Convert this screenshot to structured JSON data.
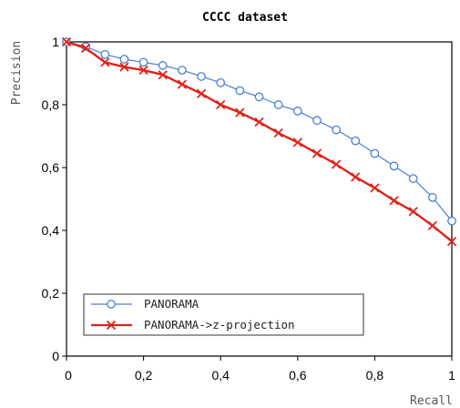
{
  "chart_data": {
    "type": "line",
    "title": "CCCC dataset",
    "xlabel": "Recall",
    "ylabel": "Precision",
    "xlim": [
      0,
      1
    ],
    "ylim": [
      0,
      1
    ],
    "xticks": [
      0,
      0.2,
      0.4,
      0.6,
      0.8,
      1
    ],
    "xtick_labels": [
      "0",
      "0,2",
      "0,4",
      "0,6",
      "0,8",
      "1"
    ],
    "yticks": [
      0,
      0.2,
      0.4,
      0.6,
      0.8,
      1
    ],
    "ytick_labels": [
      "0",
      "0,2",
      "0,4",
      "0,6",
      "0,8",
      "1"
    ],
    "grid": false,
    "legend_position": "bottom-left",
    "series": [
      {
        "name": "PANORAMA",
        "color": "#4a7fd6",
        "marker": "circle",
        "x": [
          0,
          0.05,
          0.1,
          0.15,
          0.2,
          0.25,
          0.3,
          0.35,
          0.4,
          0.45,
          0.5,
          0.55,
          0.6,
          0.65,
          0.7,
          0.75,
          0.8,
          0.85,
          0.9,
          0.95,
          1
        ],
        "y": [
          1.0,
          0.985,
          0.96,
          0.945,
          0.935,
          0.925,
          0.91,
          0.89,
          0.87,
          0.845,
          0.825,
          0.8,
          0.78,
          0.75,
          0.72,
          0.685,
          0.645,
          0.605,
          0.565,
          0.505,
          0.43
        ]
      },
      {
        "name": "PANORAMA->z-projection",
        "color": "#e0231b",
        "marker": "x",
        "x": [
          0,
          0.05,
          0.1,
          0.15,
          0.2,
          0.25,
          0.3,
          0.35,
          0.4,
          0.45,
          0.5,
          0.55,
          0.6,
          0.65,
          0.7,
          0.75,
          0.8,
          0.85,
          0.9,
          0.95,
          1
        ],
        "y": [
          1.0,
          0.98,
          0.935,
          0.92,
          0.91,
          0.895,
          0.865,
          0.835,
          0.8,
          0.775,
          0.745,
          0.71,
          0.68,
          0.645,
          0.61,
          0.57,
          0.535,
          0.495,
          0.46,
          0.415,
          0.365
        ]
      }
    ]
  }
}
